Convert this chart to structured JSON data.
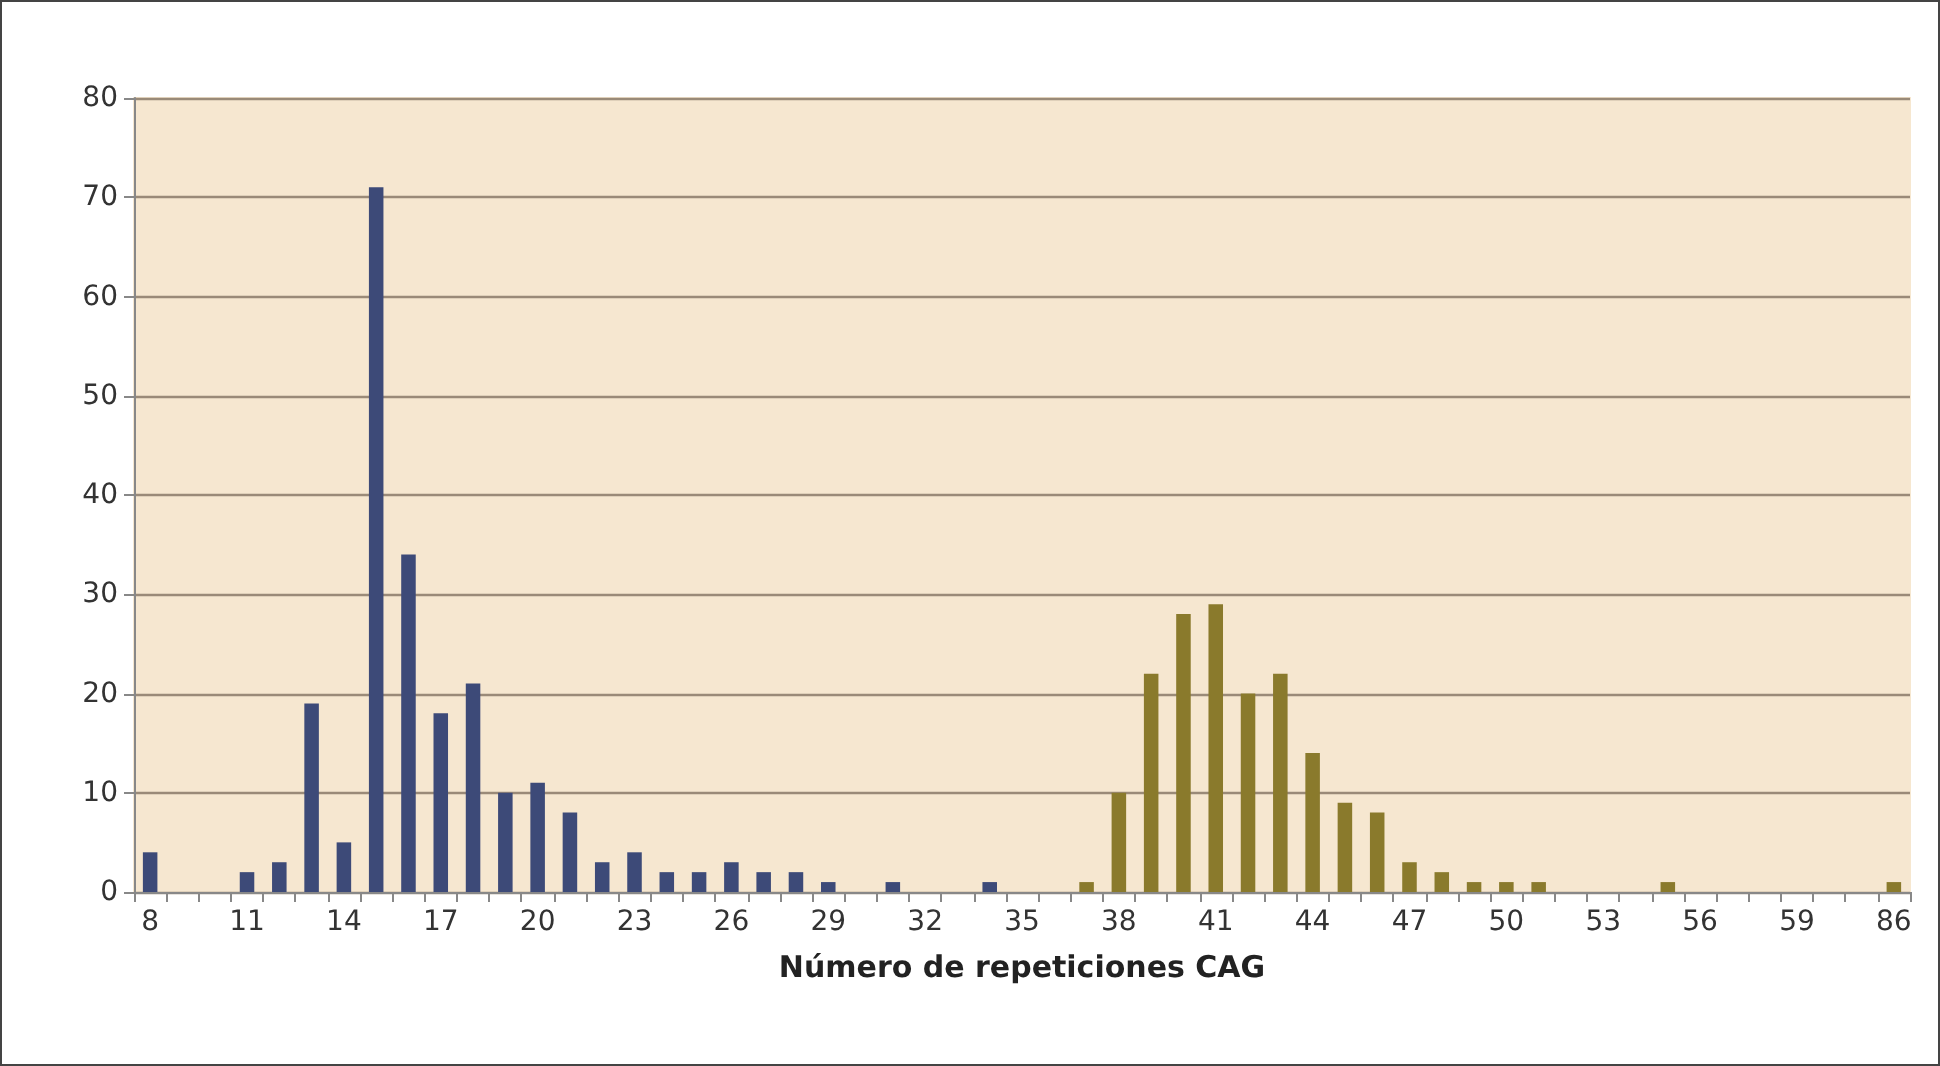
{
  "chart_data": {
    "type": "bar",
    "xlabel": "Número de repeticiones CAG",
    "categories": [
      "8",
      null,
      null,
      "11",
      null,
      null,
      "14",
      null,
      null,
      "17",
      null,
      null,
      "20",
      null,
      null,
      "23",
      null,
      null,
      "26",
      null,
      null,
      "29",
      null,
      null,
      "32",
      null,
      null,
      "35",
      null,
      null,
      "38",
      null,
      null,
      "41",
      null,
      null,
      "44",
      null,
      null,
      "47",
      null,
      null,
      "50",
      null,
      null,
      "53",
      null,
      null,
      "56",
      null,
      null,
      "59",
      null,
      null,
      "86"
    ],
    "values": [
      4,
      0,
      0,
      2,
      3,
      19,
      5,
      71,
      34,
      18,
      21,
      10,
      11,
      8,
      3,
      4,
      2,
      2,
      3,
      2,
      2,
      1,
      0,
      1,
      0,
      0,
      1,
      0,
      0,
      1,
      10,
      22,
      28,
      29,
      20,
      22,
      14,
      9,
      8,
      3,
      2,
      1,
      1,
      1,
      0,
      0,
      0,
      1,
      0,
      0,
      0,
      0,
      0,
      0,
      1
    ],
    "colors": [
      "#3d4a78",
      "#3d4a78",
      "#3d4a78",
      "#3d4a78",
      "#3d4a78",
      "#3d4a78",
      "#3d4a78",
      "#3d4a78",
      "#3d4a78",
      "#3d4a78",
      "#3d4a78",
      "#3d4a78",
      "#3d4a78",
      "#3d4a78",
      "#3d4a78",
      "#3d4a78",
      "#3d4a78",
      "#3d4a78",
      "#3d4a78",
      "#3d4a78",
      "#3d4a78",
      "#3d4a78",
      "#3d4a78",
      "#3d4a78",
      "#3d4a78",
      "#3d4a78",
      "#3d4a78",
      "#3d4a78",
      "#8a7a2c",
      "#8a7a2c",
      "#8a7a2c",
      "#8a7a2c",
      "#8a7a2c",
      "#8a7a2c",
      "#8a7a2c",
      "#8a7a2c",
      "#8a7a2c",
      "#8a7a2c",
      "#8a7a2c",
      "#8a7a2c",
      "#8a7a2c",
      "#8a7a2c",
      "#8a7a2c",
      "#8a7a2c",
      "#8a7a2c",
      "#8a7a2c",
      "#8a7a2c",
      "#8a7a2c",
      "#8a7a2c",
      "#8a7a2c",
      "#8a7a2c",
      "#8a7a2c",
      "#8a7a2c",
      "#8a7a2c",
      "#8a7a2c"
    ],
    "ylim": [
      0,
      80
    ],
    "yticks": [
      0,
      10,
      20,
      30,
      40,
      50,
      60,
      70,
      80
    ],
    "grid": "y"
  }
}
